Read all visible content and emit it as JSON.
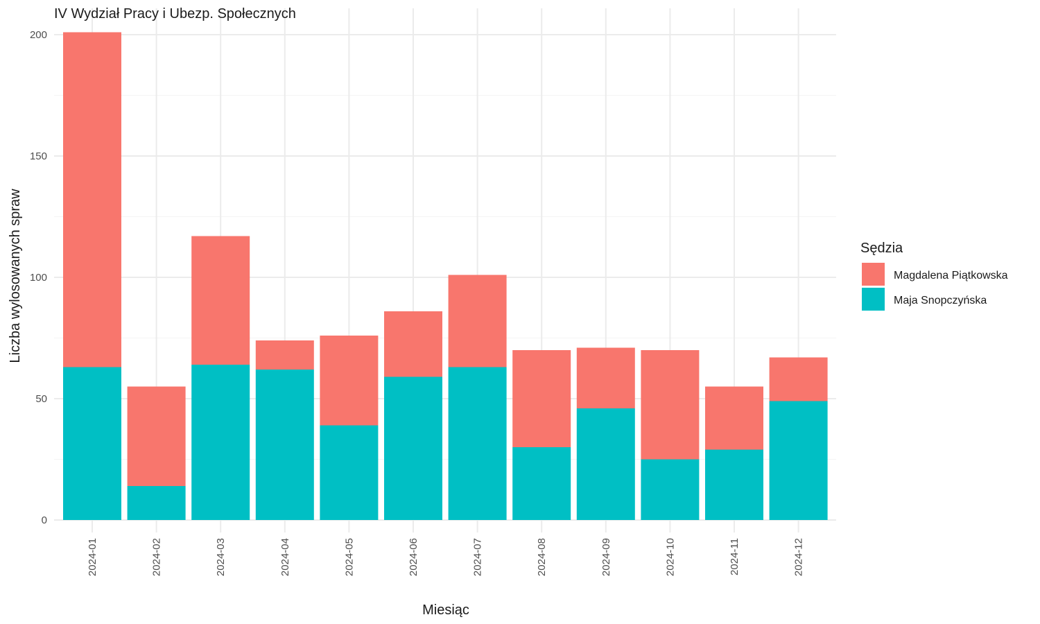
{
  "chart_data": {
    "type": "bar",
    "stacked": true,
    "title": "IV Wydział Pracy i Ubezp. Społecznych",
    "xlabel": "Miesiąc",
    "ylabel": "Liczba wylosowanych spraw",
    "ylim": [
      0,
      200
    ],
    "yticks": [
      0,
      50,
      100,
      150,
      200
    ],
    "grid": true,
    "legend_title": "Sędzia",
    "legend_position": "right",
    "categories": [
      "2024-01",
      "2024-02",
      "2024-03",
      "2024-04",
      "2024-05",
      "2024-06",
      "2024-07",
      "2024-08",
      "2024-09",
      "2024-10",
      "2024-11",
      "2024-12"
    ],
    "series": [
      {
        "name": "Magdalena Piątkowska",
        "color": "#F8766D",
        "values": [
          138,
          41,
          53,
          12,
          37,
          27,
          38,
          40,
          25,
          45,
          26,
          18
        ]
      },
      {
        "name": "Maja Snopczyńska",
        "color": "#00BFC4",
        "values": [
          63,
          14,
          64,
          62,
          39,
          59,
          63,
          30,
          46,
          25,
          29,
          49
        ]
      }
    ]
  }
}
